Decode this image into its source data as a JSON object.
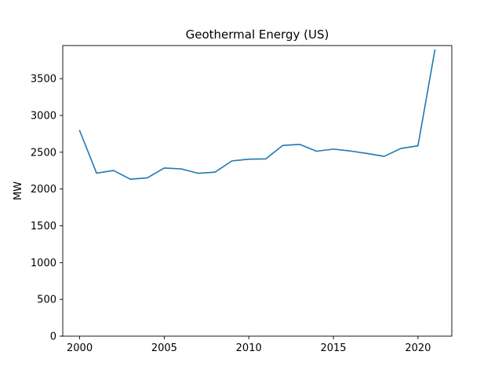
{
  "chart_data": {
    "type": "line",
    "title": "Geothermal Energy (US)",
    "xlabel": "",
    "ylabel": "MW",
    "xlim": [
      1999,
      2022
    ],
    "ylim": [
      0,
      3950
    ],
    "xticks": [
      2000,
      2005,
      2010,
      2015,
      2020
    ],
    "yticks": [
      0,
      500,
      1000,
      1500,
      2000,
      2500,
      3000,
      3500
    ],
    "grid": false,
    "line_color": "#1f77b4",
    "series": [
      {
        "x": [
          2000,
          2001,
          2002,
          2003,
          2004,
          2005,
          2006,
          2007,
          2008,
          2009,
          2010,
          2011,
          2012,
          2013,
          2014,
          2015,
          2016,
          2017,
          2018,
          2019,
          2020,
          2021
        ],
        "values": [
          2793,
          2216,
          2252,
          2133,
          2152,
          2285,
          2274,
          2214,
          2229,
          2382,
          2405,
          2409,
          2592,
          2607,
          2514,
          2542,
          2517,
          2483,
          2444,
          2552,
          2587,
          3889
        ]
      }
    ]
  }
}
